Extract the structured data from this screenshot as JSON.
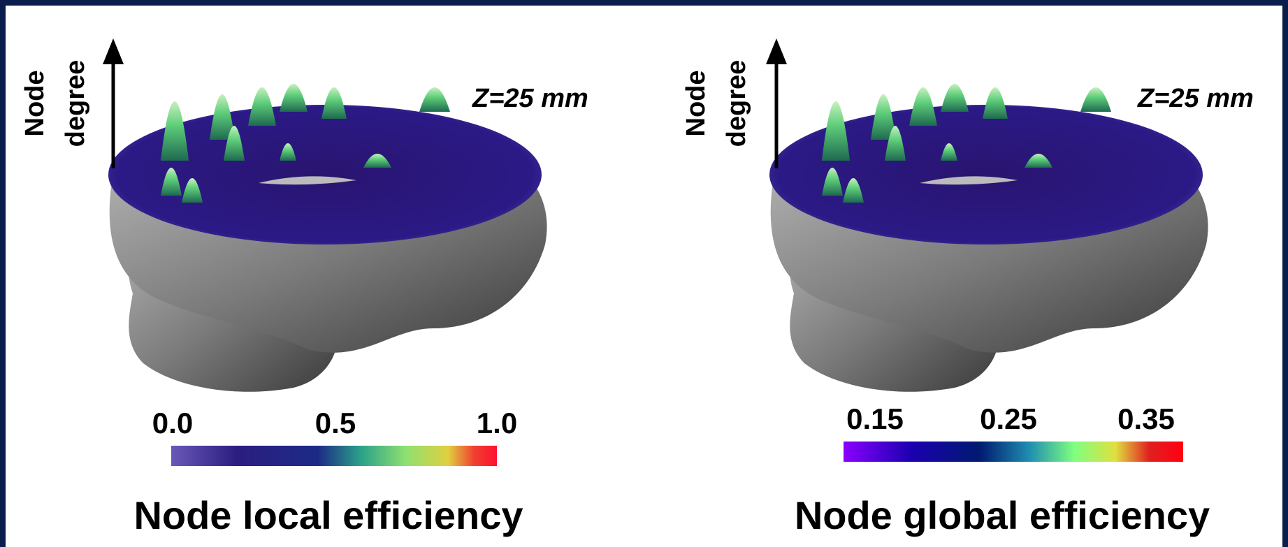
{
  "panels": [
    {
      "axis_label": [
        "Node",
        "degree"
      ],
      "annotation": "Z=25 mm",
      "colorbar_labels": [
        "0.0",
        "0.5",
        "1.0"
      ],
      "title": "Node local efficiency"
    },
    {
      "axis_label": [
        "Node",
        "degree"
      ],
      "annotation": "Z=25 mm",
      "colorbar_labels": [
        "0.15",
        "0.25",
        "0.35"
      ],
      "title": "Node global efficiency"
    }
  ]
}
